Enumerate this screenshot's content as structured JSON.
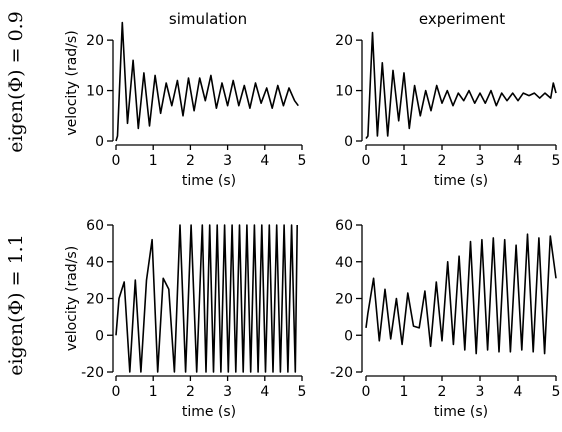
{
  "figure": {
    "column_titles": [
      "simulation",
      "experiment"
    ],
    "row_labels": [
      "eigen(Φ) = 0.9",
      "eigen(Φ) = 1.1"
    ]
  },
  "chart_data": [
    {
      "type": "line",
      "title": "simulation",
      "xlabel": "time (s)",
      "ylabel": "velocity (rad/s)",
      "xlim": [
        0,
        5
      ],
      "ylim": [
        0,
        23
      ],
      "xticks": [
        0,
        1,
        2,
        3,
        4,
        5
      ],
      "yticks": [
        0,
        10,
        20
      ],
      "series": [
        {
          "x": [
            0,
            0.04,
            0.17,
            0.31,
            0.46,
            0.6,
            0.75,
            0.9,
            1.05,
            1.2,
            1.35,
            1.5,
            1.65,
            1.8,
            1.95,
            2.1,
            2.25,
            2.4,
            2.55,
            2.7,
            2.85,
            3.0,
            3.15,
            3.3,
            3.45,
            3.6,
            3.75,
            3.9,
            4.05,
            4.2,
            4.35,
            4.5,
            4.65,
            4.8,
            4.9
          ],
          "y": [
            0,
            1,
            23.5,
            3.5,
            16,
            2.5,
            13.5,
            3,
            13,
            5.5,
            11.5,
            7,
            12,
            5,
            12.5,
            6,
            12.5,
            8,
            13,
            6.5,
            11.5,
            7,
            12,
            7,
            11,
            6.5,
            11.5,
            7.5,
            10.5,
            6.5,
            11,
            7,
            10.5,
            8,
            7
          ]
        }
      ]
    },
    {
      "type": "line",
      "title": "experiment",
      "xlabel": "time (s)",
      "ylabel": "",
      "xlim": [
        0,
        5
      ],
      "ylim": [
        0,
        23
      ],
      "xticks": [
        0,
        1,
        2,
        3,
        4,
        5
      ],
      "yticks": [
        0,
        10,
        20
      ],
      "series": [
        {
          "x": [
            0,
            0.05,
            0.17,
            0.3,
            0.43,
            0.57,
            0.71,
            0.86,
            1.0,
            1.14,
            1.28,
            1.43,
            1.57,
            1.71,
            1.86,
            2.0,
            2.14,
            2.29,
            2.43,
            2.57,
            2.71,
            2.86,
            3.0,
            3.14,
            3.29,
            3.43,
            3.57,
            3.71,
            3.86,
            4.0,
            4.14,
            4.29,
            4.43,
            4.57,
            4.71,
            4.86,
            4.93,
            5.0
          ],
          "y": [
            0.5,
            1,
            21.5,
            1,
            15.5,
            1,
            14,
            4,
            13.5,
            2.5,
            11,
            5,
            10,
            6,
            11,
            7.5,
            10,
            7,
            9.5,
            8,
            10,
            7.5,
            9.5,
            7.5,
            10,
            7,
            9.5,
            8,
            9.5,
            8,
            9.5,
            9,
            9.5,
            8.5,
            9.5,
            8.5,
            11.5,
            9.5
          ]
        }
      ]
    },
    {
      "type": "line",
      "title": "",
      "xlabel": "time (s)",
      "ylabel": "velocity (rad/s)",
      "xlim": [
        0,
        5
      ],
      "ylim": [
        -20,
        60
      ],
      "xticks": [
        0,
        1,
        2,
        3,
        4,
        5
      ],
      "yticks": [
        -20,
        0,
        20,
        40,
        60
      ],
      "series": [
        {
          "x": [
            0,
            0.08,
            0.22,
            0.37,
            0.52,
            0.67,
            0.82,
            0.97,
            1.12,
            1.27,
            1.42,
            1.57,
            1.72,
            1.87,
            2.02,
            2.17,
            2.32,
            2.42,
            2.52,
            2.62,
            2.72,
            2.82,
            2.92,
            3.02,
            3.12,
            3.22,
            3.32,
            3.42,
            3.52,
            3.62,
            3.72,
            3.82,
            3.92,
            4.02,
            4.12,
            4.22,
            4.32,
            4.42,
            4.52,
            4.62,
            4.72,
            4.82,
            4.87
          ],
          "y": [
            0,
            20,
            29,
            -20,
            30,
            -20,
            30,
            52,
            -20,
            31,
            25,
            -20,
            60,
            -20,
            60,
            -20,
            60,
            -20,
            60,
            -20,
            60,
            -20,
            60,
            -20,
            60,
            -20,
            60,
            -20,
            60,
            -20,
            60,
            -20,
            60,
            -20,
            60,
            -20,
            60,
            -20,
            60,
            -20,
            60,
            -20,
            60
          ]
        }
      ]
    },
    {
      "type": "line",
      "title": "",
      "xlabel": "time (s)",
      "ylabel": "",
      "xlim": [
        0,
        5
      ],
      "ylim": [
        -20,
        60
      ],
      "xticks": [
        0,
        1,
        2,
        3,
        4,
        5
      ],
      "yticks": [
        -20,
        0,
        20,
        40,
        60
      ],
      "series": [
        {
          "x": [
            0,
            0.05,
            0.2,
            0.35,
            0.5,
            0.65,
            0.8,
            0.95,
            1.1,
            1.25,
            1.4,
            1.55,
            1.7,
            1.85,
            2.0,
            2.15,
            2.3,
            2.45,
            2.6,
            2.75,
            2.9,
            3.05,
            3.2,
            3.35,
            3.5,
            3.65,
            3.8,
            3.95,
            4.1,
            4.25,
            4.4,
            4.55,
            4.7,
            4.85,
            5.0
          ],
          "y": [
            4,
            12,
            31,
            -3,
            25,
            -2,
            20,
            -5,
            23,
            5,
            4,
            24,
            -6,
            29,
            -3,
            40,
            -5,
            43,
            -8,
            51,
            -10,
            52,
            -8,
            53,
            -9,
            52,
            -9,
            49,
            -8,
            55,
            -9,
            53,
            -10,
            54,
            31
          ]
        }
      ]
    }
  ]
}
